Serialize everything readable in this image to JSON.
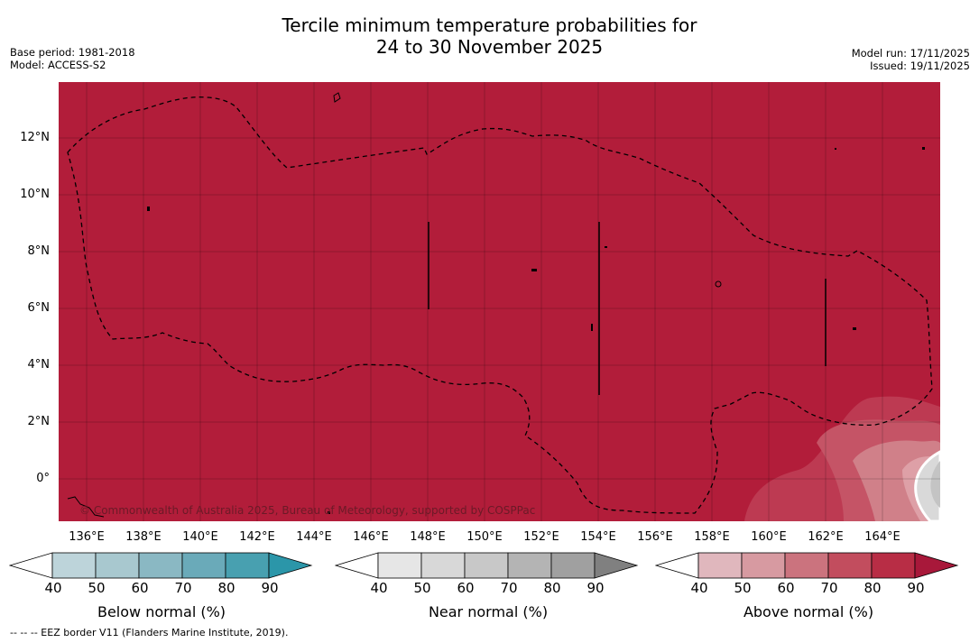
{
  "title": {
    "line1": "Tercile minimum temperature probabilities for",
    "line2": "24 to 30 November 2025"
  },
  "meta_left": {
    "base_period": "Base period: 1981-2018",
    "model": "Model: ACCESS-S2"
  },
  "meta_right": {
    "model_run": "Model run: 17/11/2025",
    "issued": "Issued: 19/11/2025"
  },
  "map": {
    "lat_labels": [
      "12°N",
      "10°N",
      "8°N",
      "6°N",
      "4°N",
      "2°N",
      "0°"
    ],
    "lon_labels": [
      "136°E",
      "138°E",
      "140°E",
      "142°E",
      "144°E",
      "146°E",
      "148°E",
      "150°E",
      "152°E",
      "154°E",
      "156°E",
      "158°E",
      "160°E",
      "162°E",
      "164°E"
    ],
    "copyright": "© Commonwealth of Australia 2025, Bureau of Meteorology, supported by COSPPac",
    "background_color": "#b21d3a"
  },
  "colorbars": [
    {
      "label": "Below normal (%)",
      "ticks": [
        "40",
        "50",
        "60",
        "70",
        "80",
        "90"
      ],
      "colors": [
        "#ffffff",
        "#bdd4da",
        "#a8c8cf",
        "#8ab8c3",
        "#6aaab9",
        "#48a0b0",
        "#2b96a9"
      ]
    },
    {
      "label": "Near normal (%)",
      "ticks": [
        "40",
        "50",
        "60",
        "70",
        "80",
        "90"
      ],
      "colors": [
        "#ffffff",
        "#e6e6e6",
        "#d8d8d8",
        "#c8c8c8",
        "#b4b4b4",
        "#a0a0a0",
        "#808080"
      ]
    },
    {
      "label": "Above normal (%)",
      "ticks": [
        "40",
        "50",
        "60",
        "70",
        "80",
        "90"
      ],
      "colors": [
        "#ffffff",
        "#e0b7bd",
        "#d79aa1",
        "#cb737e",
        "#c24d5e",
        "#b82d45",
        "#a8183a"
      ]
    }
  ],
  "footnote": "--  --  -- EEZ border V11 (Flanders Marine Institute, 2019)."
}
